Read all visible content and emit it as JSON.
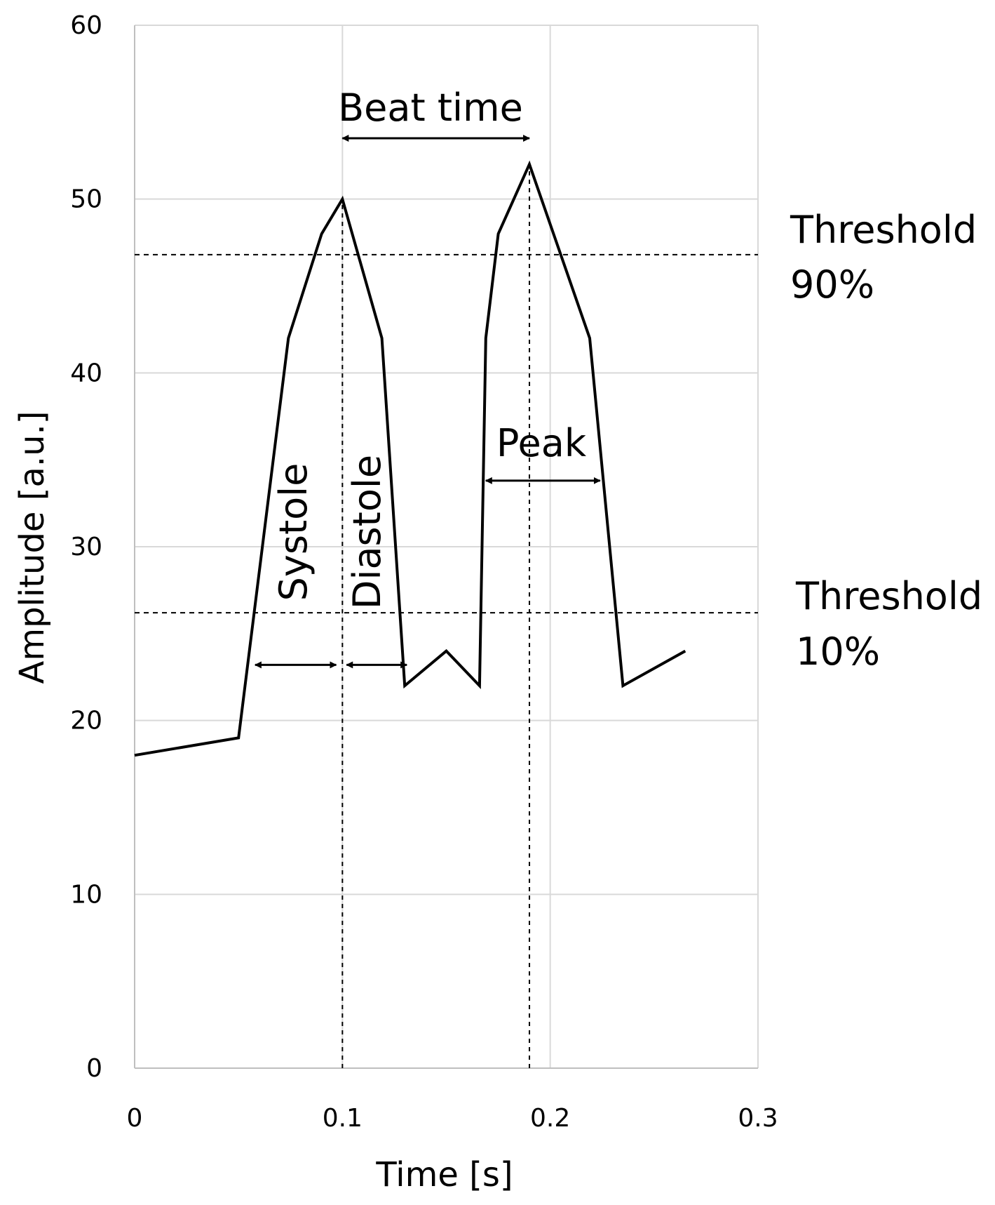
{
  "chart_data": {
    "type": "line",
    "xlabel": "Time [s]",
    "ylabel": "Amplitude [a.u.]",
    "xlim": [
      0,
      0.3
    ],
    "ylim": [
      0,
      60
    ],
    "x_ticks": [
      "0",
      "0.1",
      "0.2",
      "0.3"
    ],
    "y_ticks": [
      "0",
      "10",
      "20",
      "30",
      "40",
      "50",
      "60"
    ],
    "grid": true,
    "series": [
      {
        "x": [
          0,
          0.05,
          0.074,
          0.09,
          0.1,
          0.119,
          0.13,
          0.15,
          0.166,
          0.169,
          0.175,
          0.19,
          0.219,
          0.235,
          0.265
        ],
        "y": [
          18,
          19,
          42,
          48,
          50,
          42,
          22,
          24,
          22,
          42,
          48,
          52,
          42,
          22,
          24
        ]
      }
    ],
    "thresholds": [
      {
        "label_line1": "Threshold",
        "label_line2": "90%",
        "y": 46.8
      },
      {
        "label_line1": "Threshold",
        "label_line2": "10%",
        "y": 26.2
      }
    ],
    "peak_markers": [
      {
        "x": 0.1,
        "y_from": 0,
        "y_to": 50
      },
      {
        "x": 0.19,
        "y_from": 0,
        "y_to": 52
      }
    ],
    "annotations": {
      "beat_time": {
        "label": "Beat time",
        "x1": 0.1,
        "x2": 0.19,
        "y": 53.5
      },
      "peak": {
        "label": "Peak",
        "x1": 0.169,
        "x2": 0.224,
        "y": 33.8
      },
      "systole": {
        "label": "Systole",
        "x1": 0.058,
        "x2": 0.097,
        "y": 23.2
      },
      "diastole": {
        "label": "Diastole",
        "x1": 0.102,
        "x2": 0.131,
        "y": 23.2
      }
    },
    "colors": {
      "line": "#000000",
      "grid": "#d9d9d9",
      "axis": "#bfbfbf"
    }
  }
}
